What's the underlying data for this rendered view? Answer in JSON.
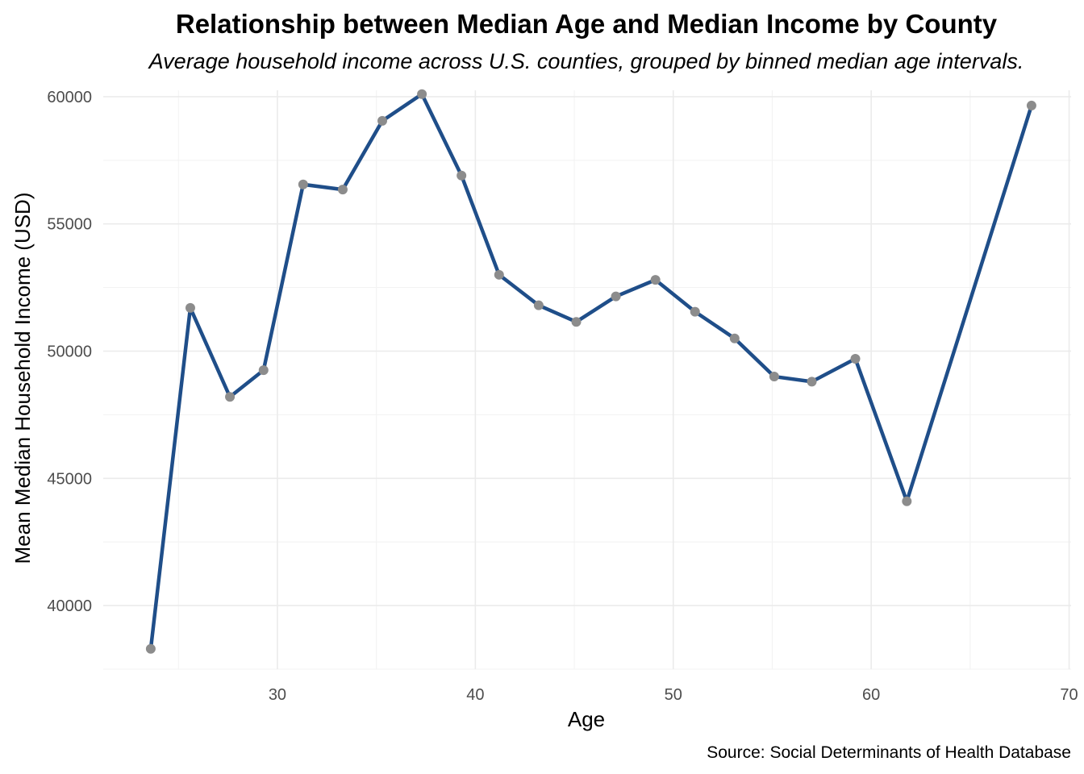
{
  "chart_data": {
    "type": "line",
    "title": "Relationship between Median Age and Median Income by County",
    "subtitle": "Average household income across U.S. counties, grouped by binned median age intervals.",
    "xlabel": "Age",
    "ylabel": "Mean Median Household Income (USD)",
    "caption": "Source: Social Determinants of Health Database",
    "xlim": [
      21.2,
      70.1
    ],
    "ylim": [
      37500,
      60250
    ],
    "xticks": [
      30,
      40,
      50,
      60,
      70
    ],
    "xticks_minor": [
      25,
      35,
      45,
      55,
      65
    ],
    "yticks": [
      40000,
      45000,
      50000,
      55000,
      60000
    ],
    "yticks_minor": [
      37500,
      42500,
      47500,
      52500,
      57500
    ],
    "grid": true,
    "legend": "none",
    "line_color": "#1f4e89",
    "point_color": "#8c8c8c",
    "series": [
      {
        "x": [
          23.6,
          25.6,
          27.6,
          29.3,
          31.3,
          33.3,
          35.3,
          37.3,
          39.3,
          41.2,
          43.2,
          45.1,
          47.1,
          49.1,
          51.1,
          53.1,
          55.1,
          57.0,
          59.2,
          61.8,
          68.1
        ],
        "y": [
          38300,
          51700,
          48200,
          49250,
          56550,
          56350,
          59050,
          60100,
          56900,
          53000,
          51800,
          51150,
          52150,
          52800,
          51550,
          50500,
          49000,
          48800,
          49700,
          44100,
          59650
        ]
      }
    ]
  }
}
